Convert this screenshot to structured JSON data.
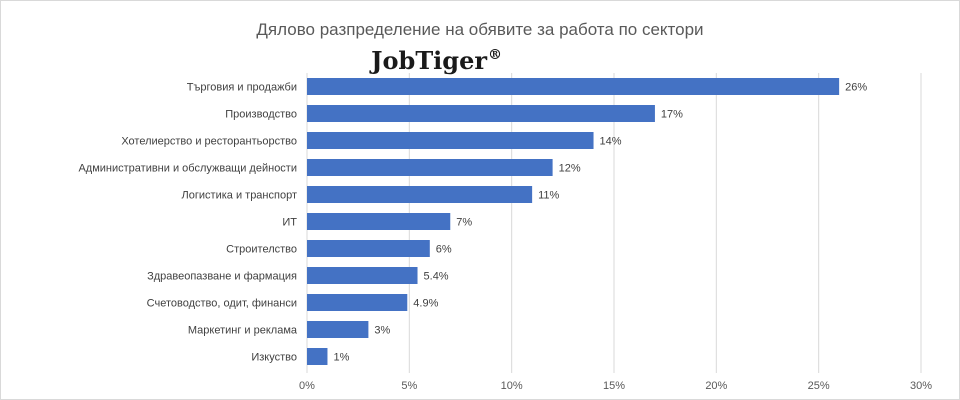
{
  "chart_data": {
    "type": "bar",
    "orientation": "horizontal",
    "title": "Дялово разпределение на обявите за работа по сектори",
    "logo": {
      "text": "JobTiger",
      "mark": "®"
    },
    "categories": [
      "Търговия и продажби",
      "Производство",
      "Хотелиерство и ресторантьорство",
      "Административни и обслужващи дейности",
      "Логистика и транспорт",
      "ИТ",
      "Строителство",
      "Здравеопазване и фармация",
      "Счетоводство, одит, финанси",
      "Маркетинг и реклама",
      "Изкуство"
    ],
    "values": [
      26,
      17,
      14,
      12,
      11,
      7,
      6,
      5.4,
      4.9,
      3,
      1
    ],
    "value_labels": [
      "26%",
      "17%",
      "14%",
      "12%",
      "11%",
      "7%",
      "6%",
      "5.4%",
      "4.9%",
      "3%",
      "1%"
    ],
    "xticks": [
      "0%",
      "5%",
      "10%",
      "15%",
      "20%",
      "25%",
      "30%"
    ],
    "xlim": [
      0,
      30
    ],
    "grid": true,
    "bar_color": "#4472c4",
    "legend": "none"
  }
}
